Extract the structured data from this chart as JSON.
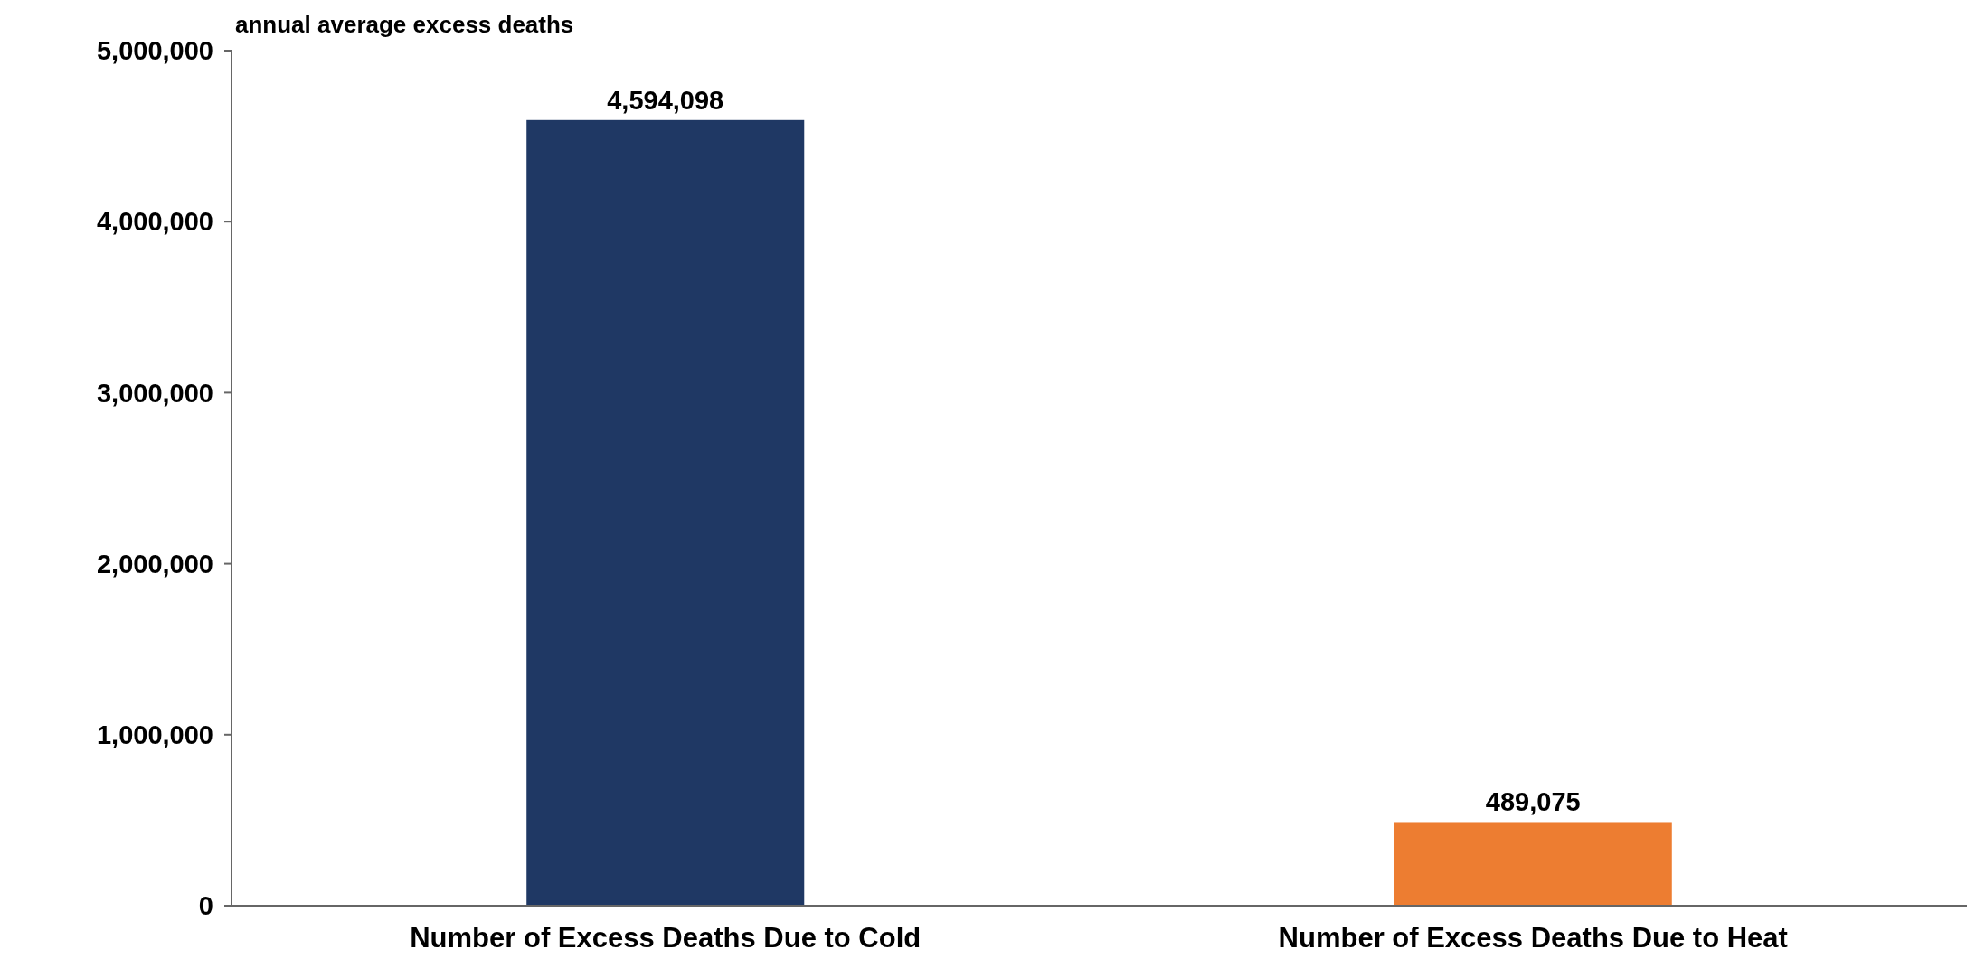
{
  "chart_data": {
    "type": "bar",
    "title": "annual average excess deaths",
    "categories": [
      "Number of Excess Deaths Due to Cold",
      "Number of Excess Deaths Due to Heat"
    ],
    "values": [
      4594098,
      489075
    ],
    "colors": [
      "#1f3864",
      "#ed7d31"
    ],
    "ylim": [
      0,
      5000000
    ],
    "yticks": [
      {
        "value": 0,
        "label": "0"
      },
      {
        "value": 1000000,
        "label": "1,000,000"
      },
      {
        "value": 2000000,
        "label": "2,000,000"
      },
      {
        "value": 3000000,
        "label": "3,000,000"
      },
      {
        "value": 4000000,
        "label": "4,000,000"
      },
      {
        "value": 5000000,
        "label": "5,000,000"
      }
    ],
    "value_labels": [
      "4,594,098",
      "489,075"
    ],
    "grid": false
  }
}
